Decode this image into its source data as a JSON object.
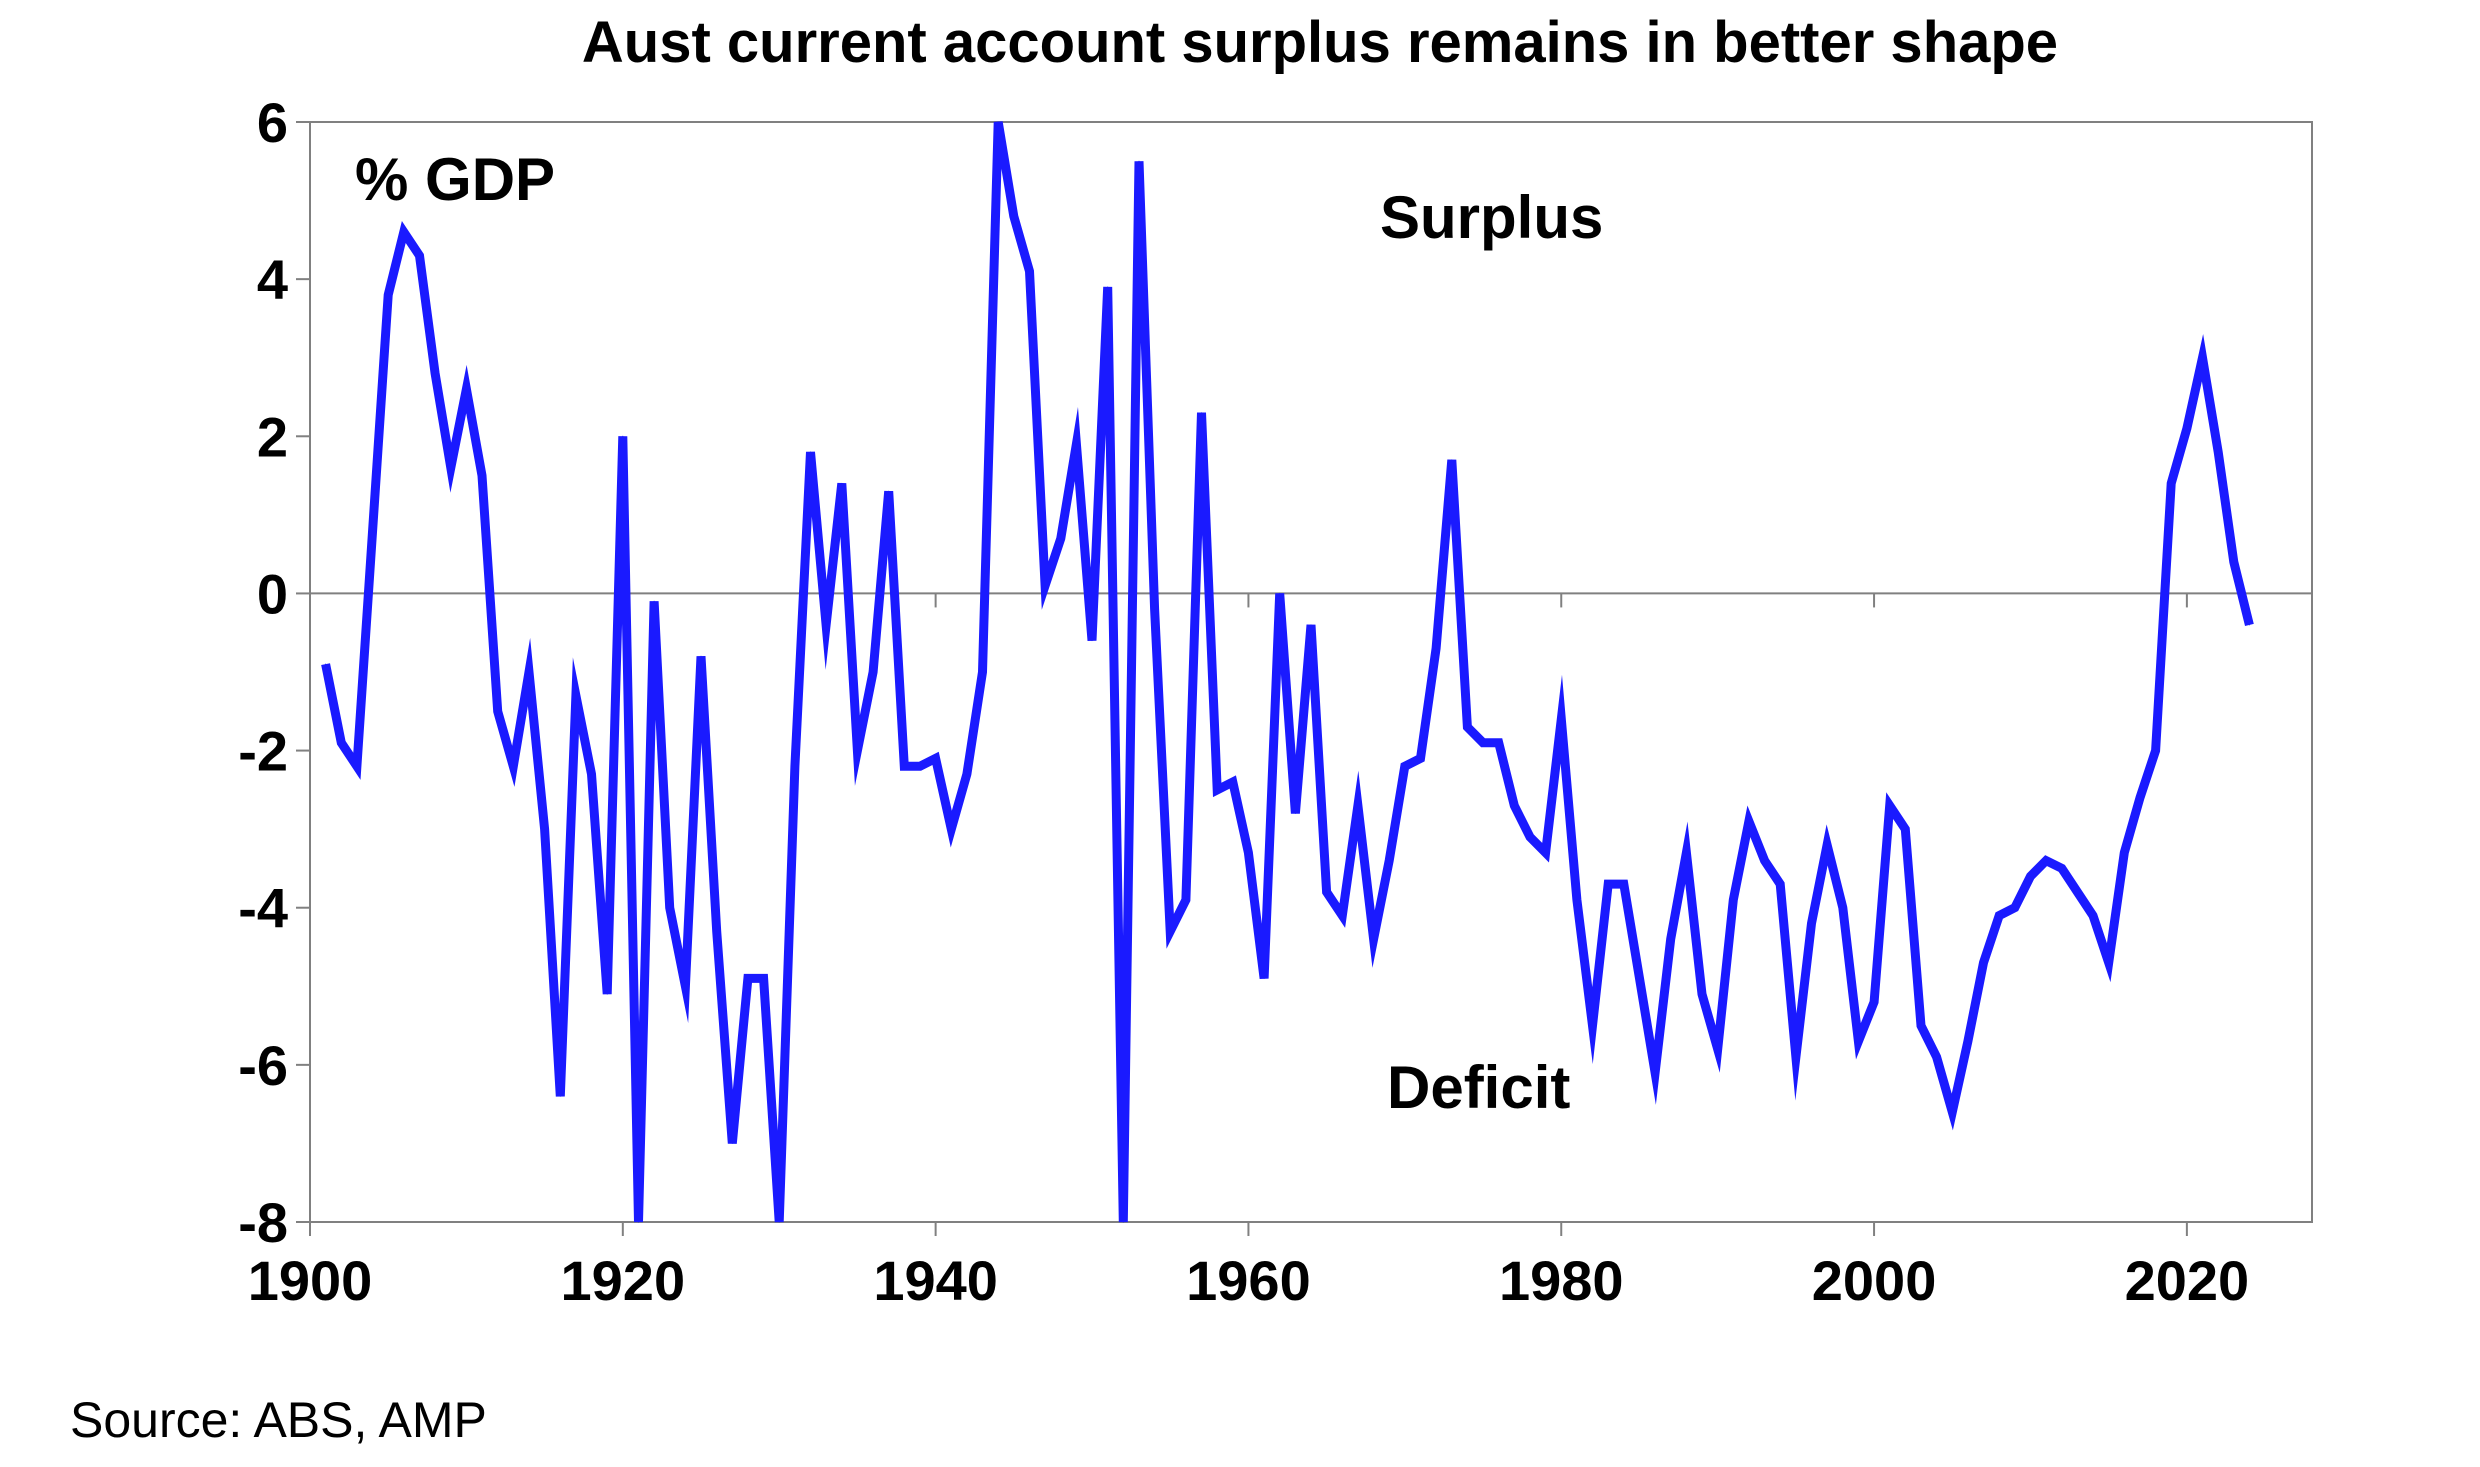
{
  "chart_data": {
    "type": "line",
    "title": "Aust current account surplus remains in better shape",
    "ylabel": "% GDP",
    "xlabel": "",
    "xlim": [
      1900,
      2028
    ],
    "ylim": [
      -8,
      6
    ],
    "x_ticks": [
      "1900",
      "1920",
      "1940",
      "1960",
      "1980",
      "2000",
      "2020"
    ],
    "y_ticks": [
      "6",
      "4",
      "2",
      "0",
      "-2",
      "-4",
      "-6",
      "-8"
    ],
    "grid": false,
    "line_color": "#1a1aff",
    "annotations": [
      "Surplus",
      "Deficit"
    ],
    "source": "Source: ABS, AMP",
    "series": [
      {
        "name": "",
        "x": [
          1901,
          1902,
          1903,
          1904,
          1905,
          1906,
          1907,
          1908,
          1909,
          1910,
          1911,
          1912,
          1913,
          1914,
          1915,
          1916,
          1917,
          1918,
          1919,
          1920,
          1921,
          1922,
          1923,
          1924,
          1925,
          1926,
          1927,
          1928,
          1929,
          1930,
          1931,
          1932,
          1933,
          1934,
          1935,
          1936,
          1937,
          1938,
          1939,
          1940,
          1941,
          1942,
          1943,
          1944,
          1945,
          1946,
          1947,
          1948,
          1949,
          1950,
          1951,
          1952,
          1953,
          1954,
          1955,
          1956,
          1957,
          1958,
          1959,
          1960,
          1961,
          1962,
          1963,
          1964,
          1965,
          1966,
          1967,
          1968,
          1969,
          1970,
          1971,
          1972,
          1973,
          1974,
          1975,
          1976,
          1977,
          1978,
          1979,
          1980,
          1981,
          1982,
          1983,
          1984,
          1985,
          1986,
          1987,
          1988,
          1989,
          1990,
          1991,
          1992,
          1993,
          1994,
          1995,
          1996,
          1997,
          1998,
          1999,
          2000,
          2001,
          2002,
          2003,
          2004,
          2005,
          2006,
          2007,
          2008,
          2009,
          2010,
          2011,
          2012,
          2013,
          2014,
          2015,
          2016,
          2017,
          2018,
          2019,
          2020,
          2021,
          2022,
          2023,
          2024
        ],
        "values": [
          -0.9,
          -1.9,
          -2.2,
          0.8,
          3.8,
          4.6,
          4.3,
          2.8,
          1.6,
          2.6,
          1.5,
          -1.5,
          -2.2,
          -1.0,
          -3.0,
          -6.4,
          -1.3,
          -2.3,
          -5.1,
          2.0,
          -8.0,
          -0.1,
          -4.0,
          -5.0,
          -0.8,
          -4.3,
          -7.0,
          -4.9,
          -4.9,
          -8.0,
          -2.2,
          1.8,
          -0.4,
          1.4,
          -2.0,
          -1.0,
          1.3,
          -2.2,
          -2.2,
          -2.1,
          -3.0,
          -2.3,
          -1.0,
          6.0,
          4.8,
          4.1,
          0.1,
          0.7,
          1.9,
          -0.6,
          3.9,
          -8.0,
          5.5,
          -0.2,
          -4.3,
          -3.9,
          2.3,
          -2.5,
          -2.4,
          -3.3,
          -4.9,
          0.0,
          -2.8,
          -0.4,
          -3.8,
          -4.1,
          -2.7,
          -4.4,
          -3.4,
          -2.2,
          -2.1,
          -0.7,
          1.7,
          -1.7,
          -1.9,
          -1.9,
          -2.7,
          -3.1,
          -3.3,
          -1.6,
          -3.9,
          -5.5,
          -3.7,
          -3.7,
          -4.9,
          -6.1,
          -4.4,
          -3.3,
          -5.1,
          -5.8,
          -3.9,
          -2.9,
          -3.4,
          -3.7,
          -5.9,
          -4.2,
          -3.2,
          -4.0,
          -5.7,
          -5.2,
          -2.7,
          -3.0,
          -5.5,
          -5.9,
          -6.6,
          -5.7,
          -4.7,
          -4.1,
          -4.0,
          -3.6,
          -3.4,
          -3.5,
          -3.8,
          -4.1,
          -4.7,
          -3.3,
          -2.6,
          -2.0,
          1.4,
          2.1,
          3.0,
          1.8,
          0.4,
          -0.4
        ]
      }
    ]
  }
}
